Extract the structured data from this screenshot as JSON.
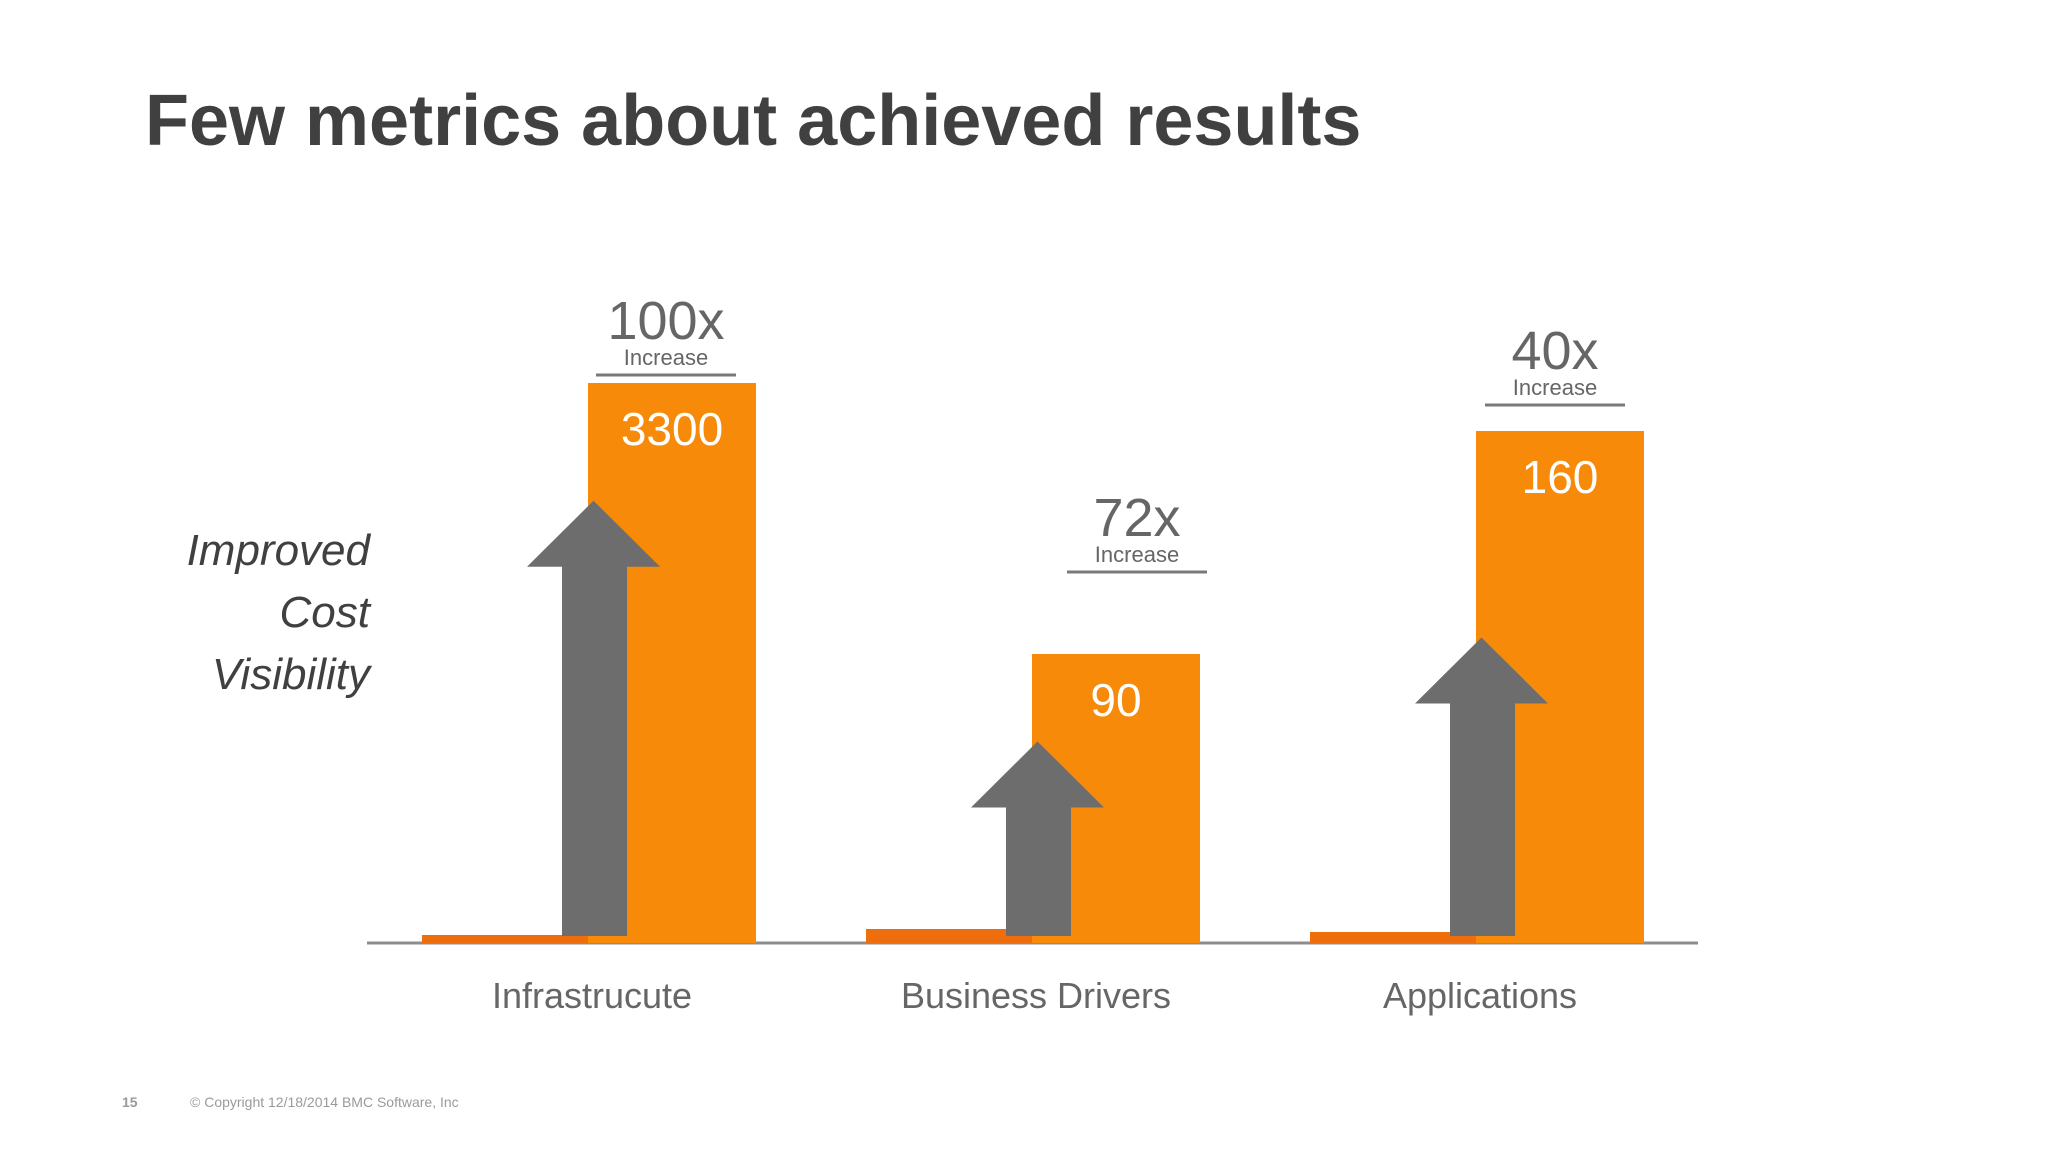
{
  "slide": {
    "title": "Few metrics about achieved results",
    "side_label": [
      "Improved",
      "Cost",
      "Visibility"
    ],
    "page_number": "15",
    "copyright": "© Copyright 12/18/2014 BMC Software, Inc"
  },
  "colors": {
    "bar": "#F78A09",
    "baseline_bar": "#EE6E0D",
    "arrow": "#6D6D6D",
    "axis": "#8C8C8C",
    "text": "#404040"
  },
  "chart_data": {
    "type": "bar",
    "categories": [
      "Infrastrucute",
      "Business Drivers",
      "Applications"
    ],
    "series": [
      {
        "values": [
          33,
          1.25,
          4
        ]
      },
      {
        "values": [
          3300,
          90,
          160
        ]
      }
    ],
    "value_labels": [
      "3300",
      "90",
      "160"
    ],
    "arrow_levels": [
      0.79,
      0.35,
      0.54
    ],
    "annotations": [
      {
        "multiplier": "100x",
        "sub": "Increase"
      },
      {
        "multiplier": "72x",
        "sub": "Increase"
      },
      {
        "multiplier": "40x",
        "sub": "Increase"
      }
    ],
    "independent_scales": true,
    "grid": false,
    "legend": "none",
    "xlabel": "",
    "ylabel": ""
  }
}
